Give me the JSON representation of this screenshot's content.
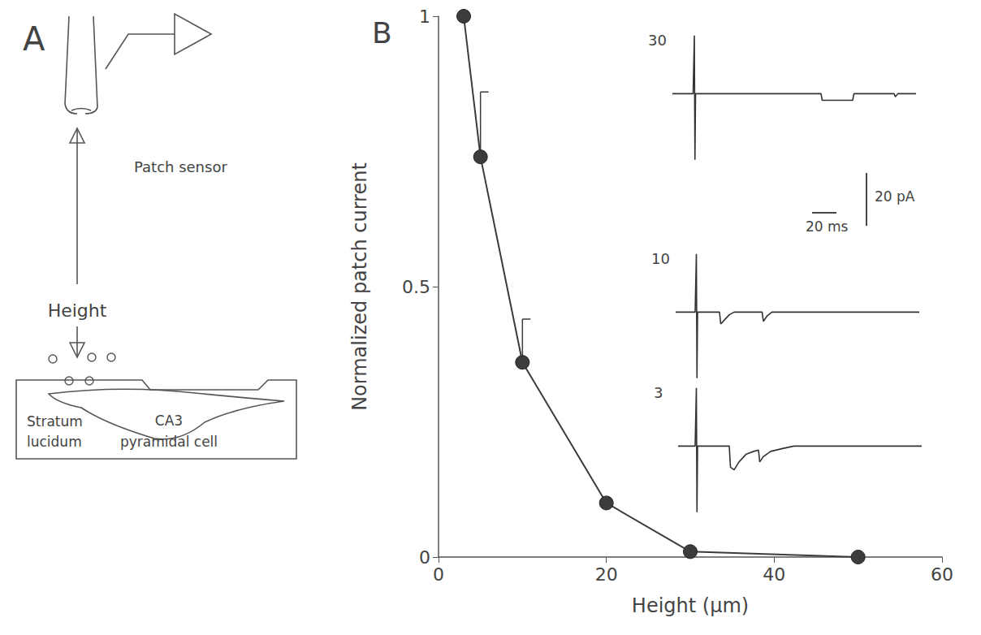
{
  "panel_a": {
    "label": "A",
    "sensor_label": "Patch sensor",
    "distance_label": "Height",
    "region_label": "Stratum lucidum",
    "cell_label": "CA3 pyramidal cell"
  },
  "chart_data": {
    "type": "line",
    "panel_label": "B",
    "x_label": "Height (μm)",
    "y_label": "Normalized patch current",
    "x": [
      3,
      5,
      10,
      20,
      30,
      50
    ],
    "values": [
      1,
      0.74,
      0.36,
      0.1,
      0.01,
      0
    ],
    "error_plus": [
      null,
      0.12,
      0.08,
      null,
      null,
      null
    ],
    "color": "#3c3c3c",
    "marker": "circle",
    "xlim": [
      0,
      60
    ],
    "xticks": [
      0,
      20,
      40,
      60
    ],
    "ylim": [
      0,
      1
    ],
    "yticks": [
      0,
      0.5,
      1
    ],
    "grid": false,
    "traces": {
      "time_ms_lim": [
        0,
        200
      ],
      "current_pA_lim": [
        -30,
        25
      ],
      "series": [
        {
          "label": "30",
          "t": [
            0,
            17,
            18,
            18.5,
            19,
            122,
            123,
            148,
            149,
            182,
            183,
            185,
            200
          ],
          "values": [
            0,
            0,
            22,
            -25,
            0,
            0,
            -2.5,
            -2.5,
            0,
            0,
            -1.2,
            0,
            0
          ]
        },
        {
          "label": "10",
          "t": [
            0,
            16,
            17,
            17.5,
            18,
            36,
            37,
            40,
            44,
            48,
            71,
            72,
            75,
            79,
            200
          ],
          "values": [
            0,
            0,
            22,
            -25,
            0,
            0,
            -4.5,
            -3,
            -1,
            0,
            0,
            -3.5,
            -1.5,
            0,
            0
          ]
        },
        {
          "label": "3",
          "t": [
            0,
            14,
            15,
            15.5,
            16,
            42,
            43,
            46,
            50,
            56,
            62,
            66,
            67,
            70,
            76,
            85,
            95,
            200
          ],
          "values": [
            0,
            0,
            22,
            -25,
            0,
            0,
            -8,
            -9,
            -6,
            -3,
            -2,
            -1.5,
            -6,
            -4,
            -2,
            -1,
            0,
            0
          ]
        }
      ],
      "scale_bar": {
        "current": 20,
        "current_label": "20 pA",
        "time": 20,
        "time_label": "20 ms"
      }
    }
  }
}
